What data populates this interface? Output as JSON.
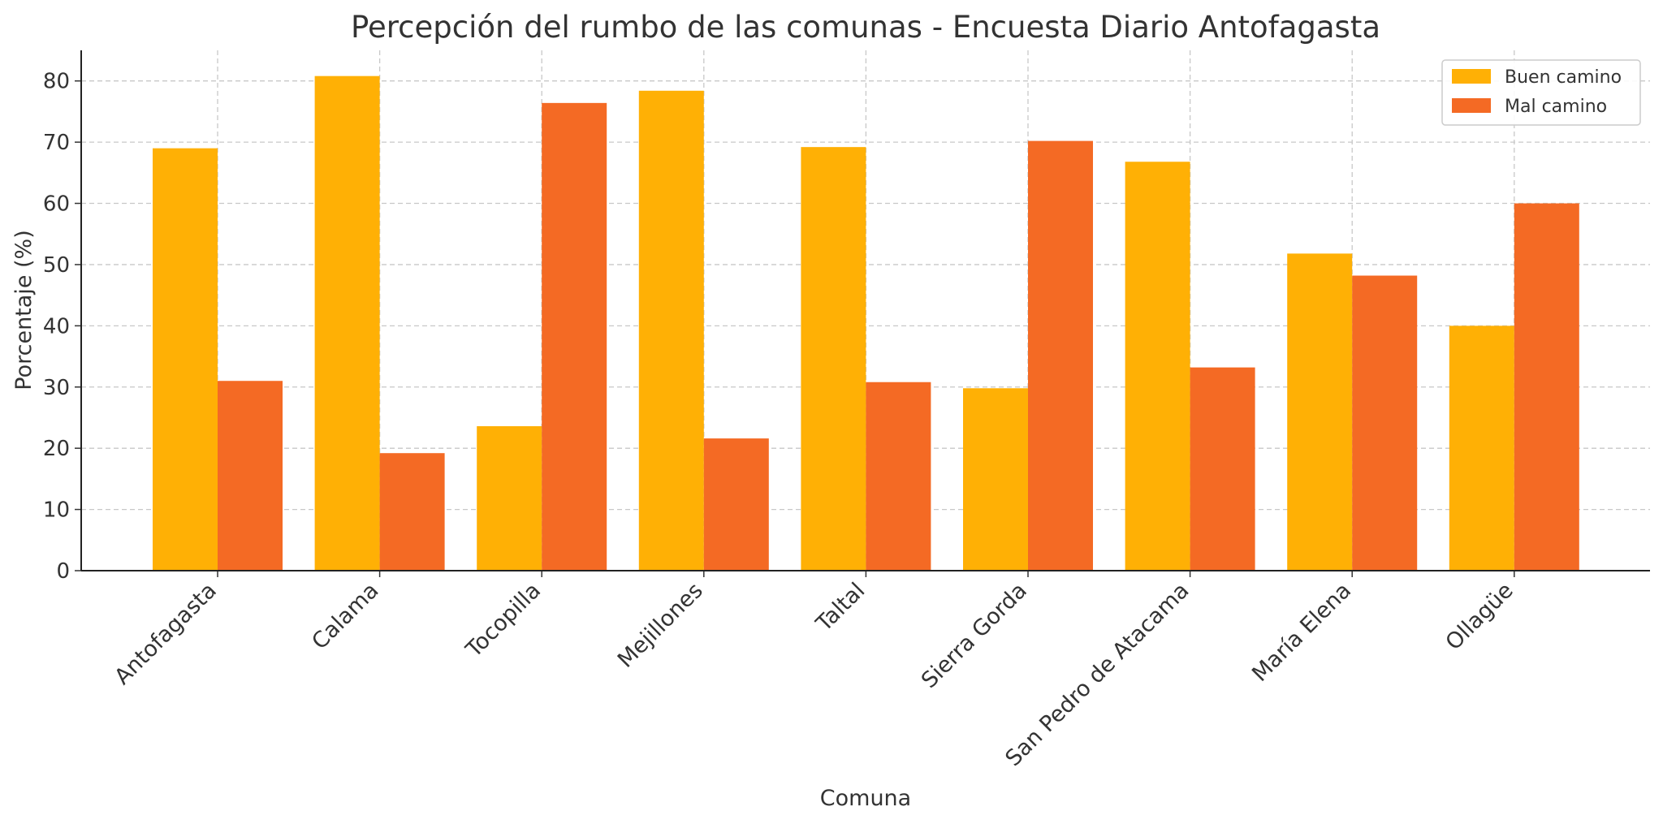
{
  "chart_data": {
    "type": "bar",
    "title": "Percepción del rumbo de las comunas - Encuesta Diario Antofagasta",
    "xlabel": "Comuna",
    "ylabel": "Porcentaje (%)",
    "categories": [
      "Antofagasta",
      "Calama",
      "Tocopilla",
      "Mejillones",
      "Taltal",
      "Sierra Gorda",
      "San Pedro de Atacama",
      "María Elena",
      "Ollagüe"
    ],
    "series": [
      {
        "name": "Buen camino",
        "color": "#FFB005",
        "values": [
          69.0,
          80.8,
          23.6,
          78.4,
          69.2,
          29.8,
          66.8,
          51.8,
          40.0
        ]
      },
      {
        "name": "Mal camino",
        "color": "#F46A24",
        "values": [
          31.0,
          19.2,
          76.4,
          21.6,
          30.8,
          70.2,
          33.2,
          48.2,
          60.0
        ]
      }
    ],
    "ylim": [
      0,
      85
    ],
    "yticks": [
      0,
      10,
      20,
      30,
      40,
      50,
      60,
      70,
      80
    ],
    "grid": true,
    "legend_position": "top-right"
  }
}
